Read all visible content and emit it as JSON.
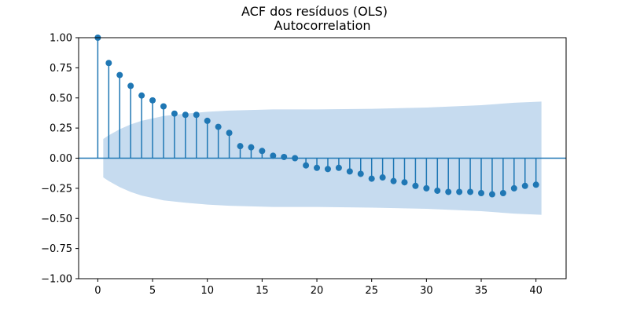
{
  "figure": {
    "suptitle": "ACF dos resíduos (OLS)"
  },
  "chart_data": {
    "type": "stem",
    "title": "Autocorrelation",
    "xlabel": "",
    "ylabel": "",
    "xlim": [
      -1.75,
      42.75
    ],
    "ylim": [
      -1,
      1
    ],
    "xticks": [
      0,
      5,
      10,
      15,
      20,
      25,
      30,
      35,
      40
    ],
    "yticks": [
      -1.0,
      -0.75,
      -0.5,
      -0.25,
      0.0,
      0.25,
      0.5,
      0.75,
      1.0
    ],
    "ytick_labels": [
      "−1.00",
      "−0.75",
      "−0.50",
      "−0.25",
      "0.00",
      "0.25",
      "0.50",
      "0.75",
      "1.00"
    ],
    "grid": false,
    "colors": {
      "stem": "#1f77b4",
      "zero_line": "#1f77b4",
      "confidence_band": "#c6dbef"
    },
    "lags": [
      0,
      1,
      2,
      3,
      4,
      5,
      6,
      7,
      8,
      9,
      10,
      11,
      12,
      13,
      14,
      15,
      16,
      17,
      18,
      19,
      20,
      21,
      22,
      23,
      24,
      25,
      26,
      27,
      28,
      29,
      30,
      31,
      32,
      33,
      34,
      35,
      36,
      37,
      38,
      39,
      40
    ],
    "values": [
      1.0,
      0.79,
      0.69,
      0.6,
      0.52,
      0.48,
      0.43,
      0.37,
      0.36,
      0.36,
      0.31,
      0.26,
      0.21,
      0.1,
      0.09,
      0.06,
      0.02,
      0.01,
      0.0,
      -0.06,
      -0.08,
      -0.09,
      -0.08,
      -0.11,
      -0.13,
      -0.17,
      -0.16,
      -0.19,
      -0.2,
      -0.23,
      -0.25,
      -0.27,
      -0.28,
      -0.28,
      -0.28,
      -0.29,
      -0.3,
      -0.29,
      -0.25,
      -0.23,
      -0.22
    ],
    "confidence_band": {
      "x": [
        0.5,
        1,
        2,
        3,
        4,
        5,
        6,
        7,
        8,
        10,
        12,
        14,
        16,
        18,
        20,
        25,
        30,
        35,
        38,
        40.5
      ],
      "upper": [
        0.16,
        0.19,
        0.24,
        0.28,
        0.31,
        0.33,
        0.35,
        0.36,
        0.37,
        0.385,
        0.395,
        0.4,
        0.405,
        0.405,
        0.405,
        0.41,
        0.42,
        0.44,
        0.46,
        0.47
      ],
      "lower": [
        -0.16,
        -0.19,
        -0.24,
        -0.28,
        -0.31,
        -0.33,
        -0.35,
        -0.36,
        -0.37,
        -0.385,
        -0.395,
        -0.4,
        -0.405,
        -0.405,
        -0.405,
        -0.41,
        -0.42,
        -0.44,
        -0.46,
        -0.47
      ]
    }
  }
}
